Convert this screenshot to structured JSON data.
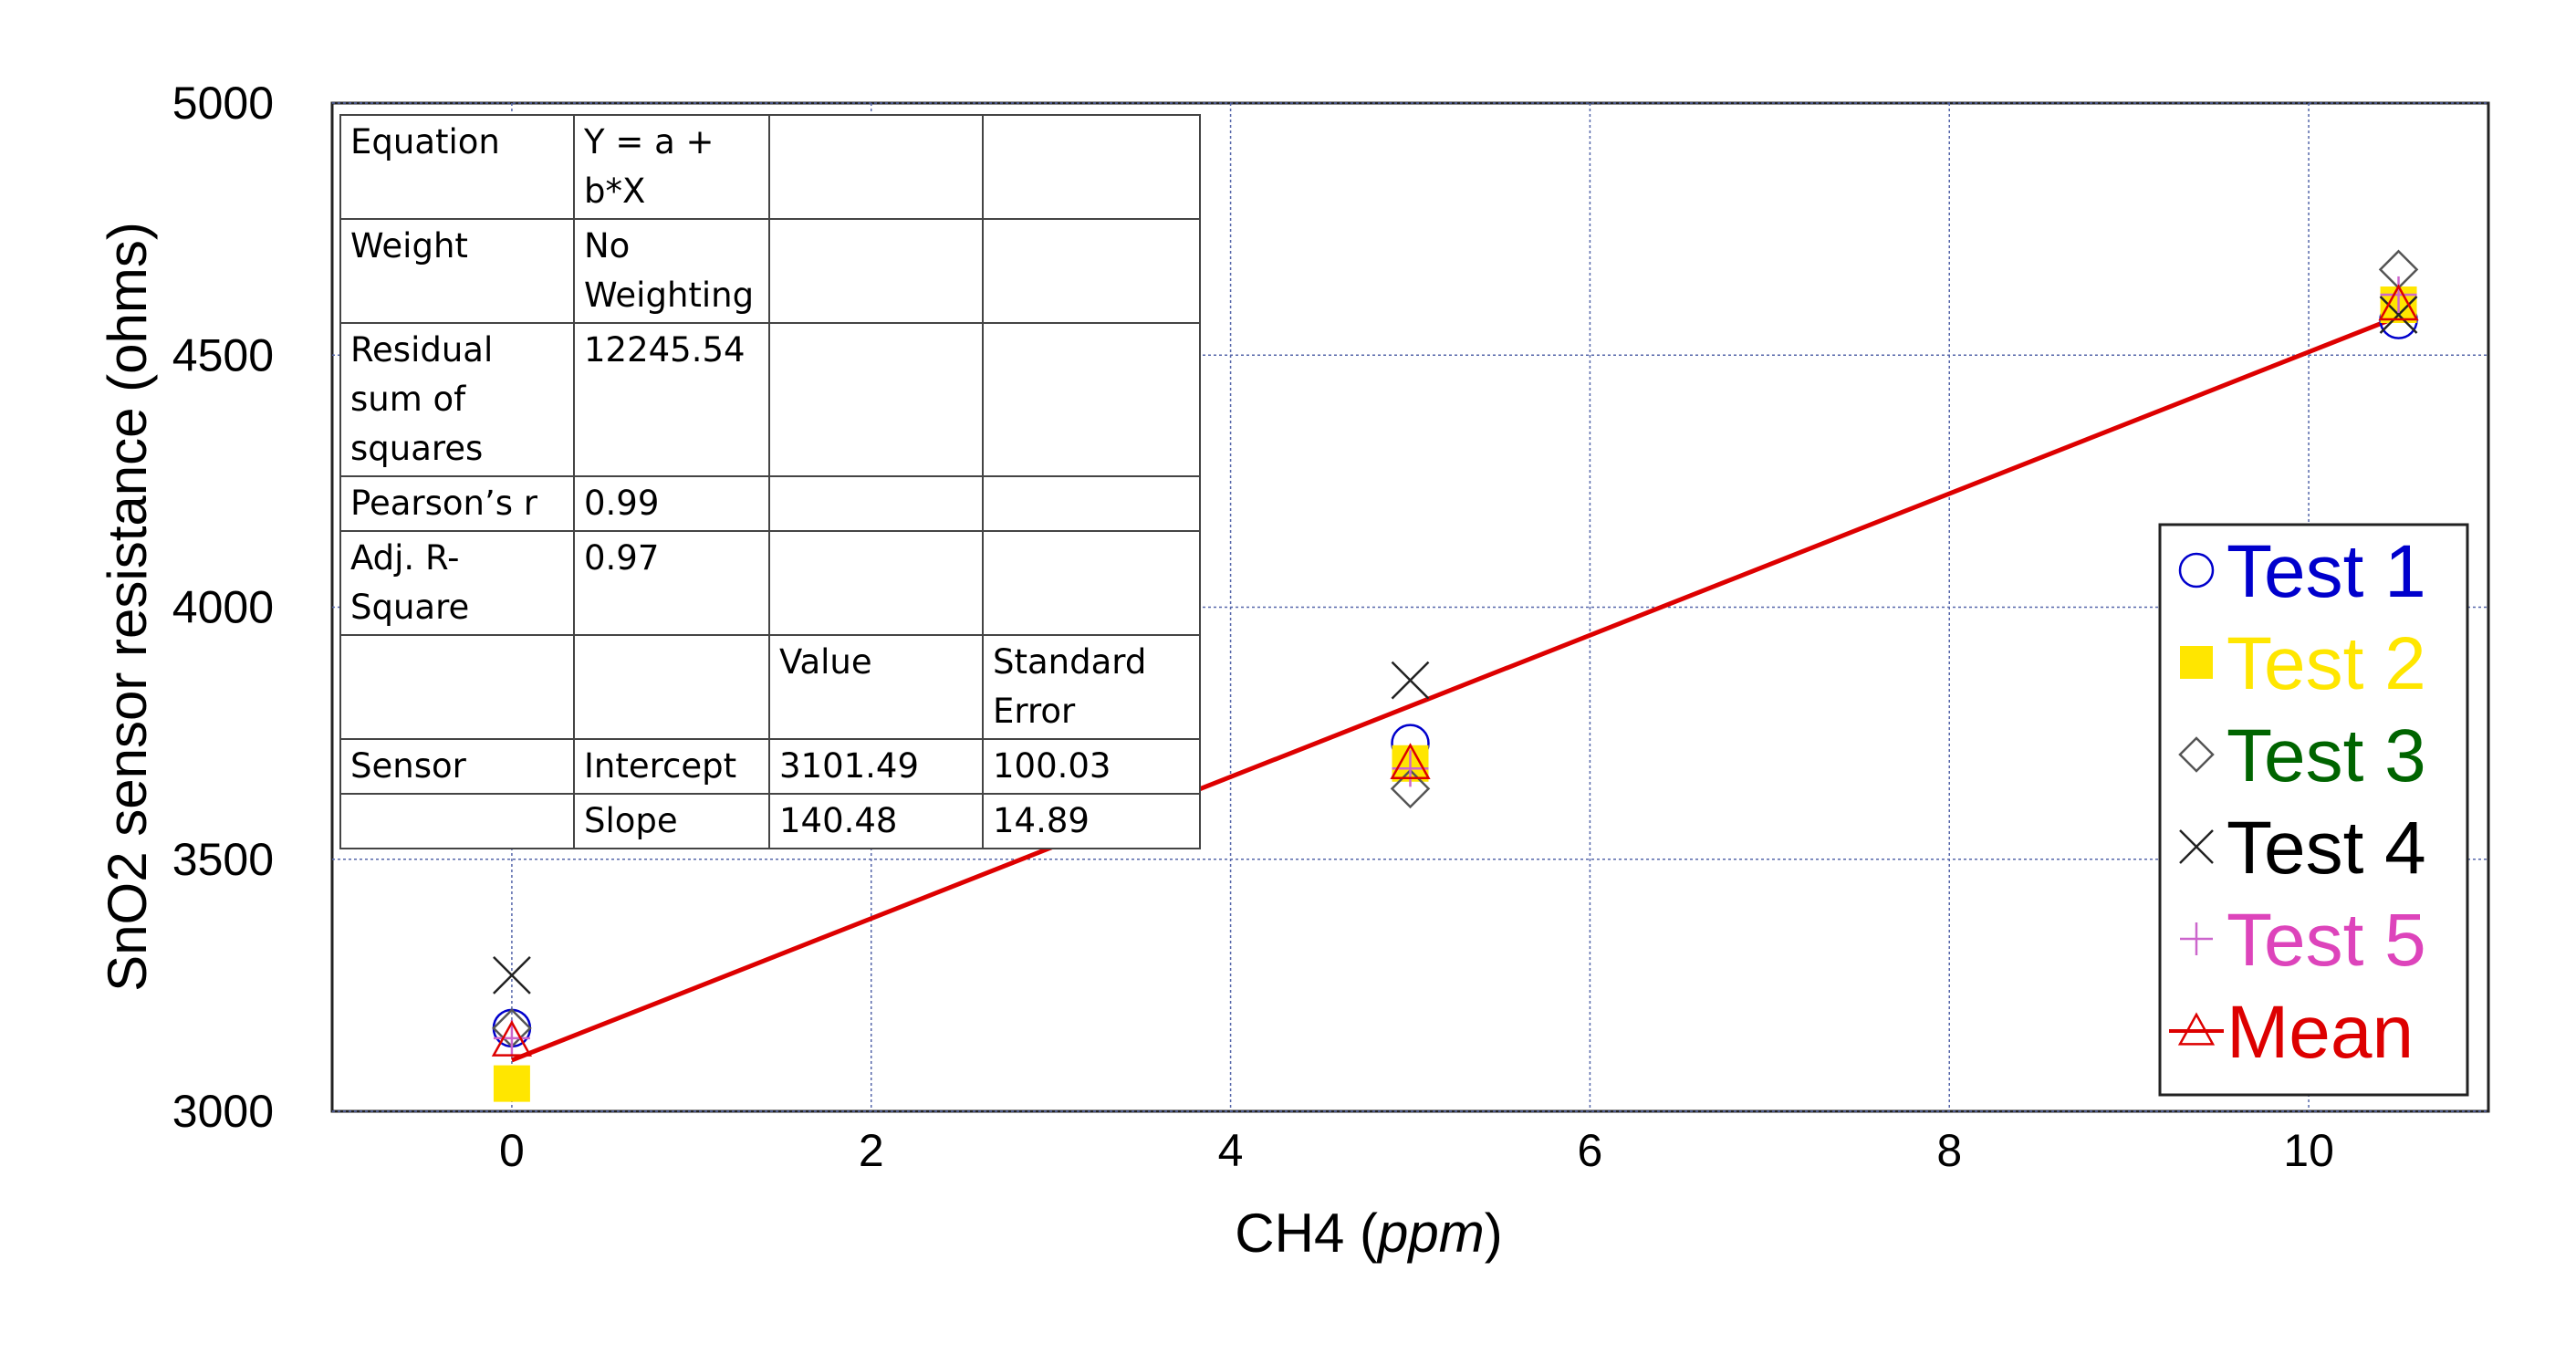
{
  "chart_data": {
    "type": "scatter",
    "xlabel": "CH4",
    "xlabel_unit": "ppm",
    "ylabel": "SnO2 sensor resistance (ohms)",
    "xlim": [
      -1,
      11
    ],
    "ylim": [
      3000,
      5000
    ],
    "x_ticks": [
      "0",
      "2",
      "4",
      "6",
      "8",
      "10"
    ],
    "x_tick_values": [
      0,
      2,
      4,
      6,
      8,
      10
    ],
    "y_ticks": [
      "3000",
      "3500",
      "4000",
      "4500",
      "5000"
    ],
    "y_tick_values": [
      3000,
      3500,
      4000,
      4500,
      5000
    ],
    "grid": true,
    "legend_position": "right",
    "series": [
      {
        "name": "Test 1",
        "marker": "circle",
        "color": "#0000cc",
        "text_color": "#0000cc",
        "x": [
          0,
          5,
          10.5
        ],
        "y": [
          3165,
          3730,
          4570
        ]
      },
      {
        "name": "Test 2",
        "marker": "filled-square",
        "color": "#ffe600",
        "text_color": "#ffe600",
        "x": [
          0,
          5,
          10.5
        ],
        "y": [
          3055,
          3690,
          4600
        ]
      },
      {
        "name": "Test 3",
        "marker": "diamond",
        "color": "#555555",
        "text_color": "#006400",
        "x": [
          0,
          5,
          10.5
        ],
        "y": [
          3165,
          3640,
          4670
        ]
      },
      {
        "name": "Test 4",
        "marker": "x",
        "color": "#222222",
        "text_color": "#000000",
        "x": [
          0,
          5,
          10.5
        ],
        "y": [
          3270,
          3855,
          4580
        ]
      },
      {
        "name": "Test 5",
        "marker": "plus",
        "color": "#cc66cc",
        "text_color": "#dd44bb",
        "x": [
          0,
          5,
          10.5
        ],
        "y": [
          3145,
          3680,
          4620
        ]
      },
      {
        "name": "Mean",
        "marker": "triangle",
        "color": "#dd0000",
        "text_color": "#dd0000",
        "x": [
          0,
          5,
          10.5
        ],
        "y": [
          3140,
          3690,
          4600
        ]
      }
    ],
    "fit_line": {
      "intercept": 3101.49,
      "slope": 140.48,
      "x_range": [
        0,
        10.5
      ],
      "color": "#dd0000"
    },
    "stats_table": [
      [
        "Equation",
        "Y = a + b*X",
        "",
        ""
      ],
      [
        "Weight",
        "No Weighting",
        "",
        ""
      ],
      [
        "Residual sum of squares",
        "12245.54",
        "",
        ""
      ],
      [
        "Pearson’s r",
        "0.99",
        "",
        ""
      ],
      [
        "Adj. R-Square",
        "0.97",
        "",
        ""
      ],
      [
        "",
        "",
        "Value",
        "Standard Error"
      ],
      [
        "Sensor",
        "Intercept",
        "3101.49",
        "100.03"
      ],
      [
        "",
        "Slope",
        "140.48",
        "14.89"
      ]
    ]
  }
}
